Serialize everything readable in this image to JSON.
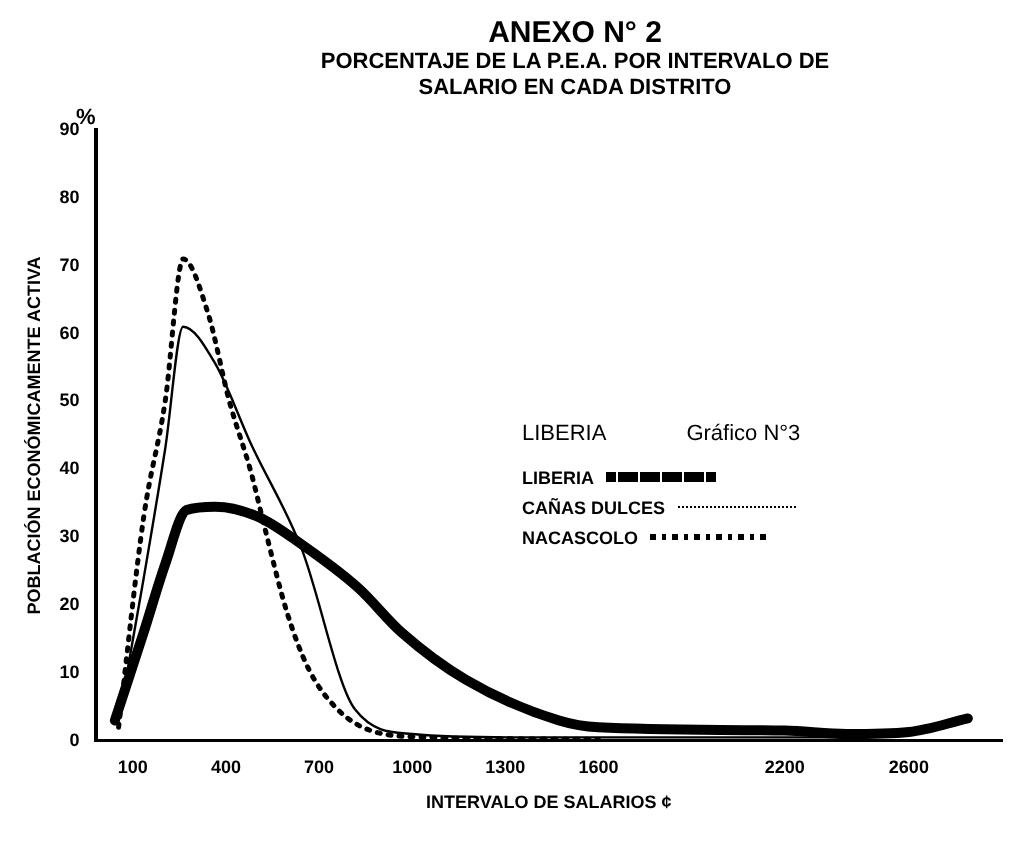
{
  "chart_data": {
    "type": "line",
    "title": "ANEXO N° 2",
    "subtitle": "PORCENTAJE DE LA P.E.A. POR INTERVALO DE SALARIO EN CADA DISTRITO",
    "xlabel": "INTERVALO DE SALARIOS ¢",
    "ylabel": "POBLACIÓN ECONÓMICAMENTE ACTIVA",
    "legend_title": "LIBERIA",
    "annotations": [
      "%",
      "Gráfico N°3"
    ],
    "xlim": [
      -20,
      2900
    ],
    "ylim": [
      0,
      90
    ],
    "xticks": [
      100,
      400,
      700,
      1000,
      1300,
      1600,
      2200,
      2600
    ],
    "yticks": [
      0,
      10,
      20,
      30,
      40,
      50,
      60,
      70,
      80,
      90
    ],
    "legend": "right",
    "grid": false,
    "series": [
      {
        "name": "LIBERIA",
        "color": "#000000",
        "line_style": "solid",
        "x": [
          42,
          135,
          204,
          273,
          365,
          504,
          642,
          827,
          965,
          1173,
          1473,
          1600,
          2200,
          2400,
          2600,
          2790
        ],
        "values": [
          3,
          16,
          26,
          34,
          34.5,
          33,
          29,
          22.5,
          16,
          9,
          3,
          2,
          1.5,
          1,
          1.3,
          3.3
        ]
      },
      {
        "name": "CAÑAS DULCES",
        "color": "#000000",
        "line_style": "solid",
        "x": [
          54,
          135,
          204,
          262,
          365,
          481,
          642,
          816,
          1000,
          1350,
          2460
        ],
        "values": [
          3,
          24,
          43,
          61,
          55.6,
          43.7,
          28.5,
          4.6,
          1,
          0.5,
          0.5
        ]
      },
      {
        "name": "NACASCOLO",
        "color": "#000000",
        "line_style": "dotted",
        "x": [
          54,
          135,
          204,
          262,
          342,
          411,
          481,
          527,
          596,
          665,
          758,
          873,
          1058,
          1300,
          1600
        ],
        "values": [
          2,
          33,
          50,
          71,
          63,
          50,
          39.5,
          31,
          19,
          10.7,
          4.7,
          1.4,
          0.5,
          0.3,
          0.2
        ]
      }
    ]
  }
}
